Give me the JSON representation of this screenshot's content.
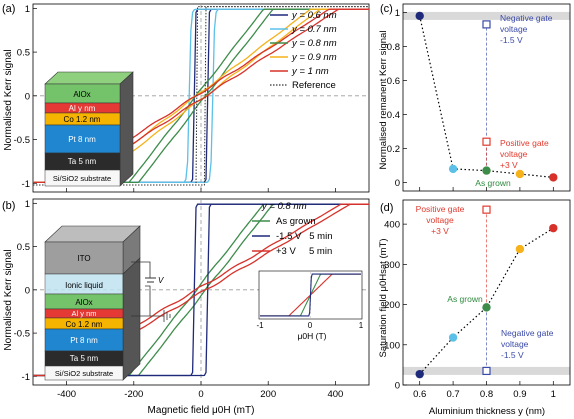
{
  "colors": {
    "navy": "#1f2a7a",
    "light_blue": "#5cc0e8",
    "green": "#3d8c4a",
    "orange": "#f5b21a",
    "red": "#d8312a",
    "reference": "#333333",
    "grey_band": "#d9d9d9",
    "annot_red": "#e23a2e",
    "annot_blue": "#3a4aa8",
    "annot_green": "#2e8a3e"
  },
  "panel_a": {
    "label": "(a)",
    "ylabel": "Normalised Kerr signal",
    "legend": [
      {
        "text": "y = 0.6 nm",
        "color": "#1f2a7a"
      },
      {
        "text": "y = 0.7 nm",
        "color": "#5cc0e8"
      },
      {
        "text": "y = 0.8 nm",
        "color": "#3d8c4a"
      },
      {
        "text": "y = 0.9 nm",
        "color": "#f5b21a"
      },
      {
        "text": "y = 1 nm",
        "color": "#d8312a"
      },
      {
        "text": "Reference",
        "color": "#333333"
      }
    ],
    "stack": [
      {
        "text": "AlOx",
        "color": "#74c26a"
      },
      {
        "text": "Al y nm",
        "color": "#e53935"
      },
      {
        "text": "Co 1.2 nm",
        "color": "#f4b400"
      },
      {
        "text": "Pt 8 nm",
        "color": "#1f86cf"
      },
      {
        "text": "Ta 5 nm",
        "color": "#2b2b2b"
      },
      {
        "text": "Si/SiO2 substrate",
        "color": "#f7f7f7"
      }
    ]
  },
  "panel_b": {
    "label": "(b)",
    "ylabel": "Normalised Kerr signal",
    "xlabel": "Magnetic field μ0H (mT)",
    "legend_title": "y = 0.8 nm",
    "legend": [
      {
        "text": "As grown",
        "color": "#3d8c4a"
      },
      {
        "text": "-1.5 V   5 min",
        "color": "#1f2a7a"
      },
      {
        "text": "+3 V     5 min",
        "color": "#d8312a"
      }
    ],
    "stack": [
      {
        "text": "ITO",
        "color": "#9e9e9e"
      },
      {
        "text": "Ionic liquid",
        "color": "#bfe3f2"
      },
      {
        "text": "AlOx",
        "color": "#74c26a"
      },
      {
        "text": "Al y nm",
        "color": "#e53935"
      },
      {
        "text": "Co 1.2 nm",
        "color": "#f4b400"
      },
      {
        "text": "Pt 8 nm",
        "color": "#1f86cf"
      },
      {
        "text": "Ta 5 nm",
        "color": "#2b2b2b"
      },
      {
        "text": "Si/SiO2 substrate",
        "color": "#f7f7f7"
      }
    ],
    "voltage_label": "V",
    "inset": {
      "xlabel": "μ0H (T)",
      "xticks": [
        "-1",
        "0",
        "1"
      ]
    }
  },
  "panel_c": {
    "label": "(c)",
    "ylabel": "Normalised remanent Kerr signal",
    "annot_negative": [
      "Negative gate",
      "voltage",
      "-1.5 V"
    ],
    "annot_positive": [
      "Positive gate",
      "voltage",
      "+3 V"
    ],
    "annot_asgrown": "As grown"
  },
  "panel_d": {
    "label": "(d)",
    "ylabel": "Saturation field μ0Hsat (mT)",
    "xlabel": "Aluminium thickness y (nm)",
    "annot_positive": [
      "Positive gate",
      "voltage",
      "+3 V"
    ],
    "annot_negative": [
      "Negative gate",
      "voltage",
      "-1.5 V"
    ],
    "annot_asgrown": "As grown"
  },
  "chart_data": [
    {
      "type": "line",
      "panel": "a",
      "xlabel": "",
      "ylabel": "Normalised Kerr signal",
      "xlim": [
        -500,
        500
      ],
      "ylim": [
        -1.1,
        1.05
      ],
      "xticks": [
        -400,
        -200,
        0,
        200,
        400
      ],
      "yticks": [
        -1,
        -0.5,
        0,
        0.5,
        1
      ],
      "series": [
        {
          "name": "y = 0.6 nm",
          "kind": "square",
          "hc": 20,
          "color": "#1f2a7a"
        },
        {
          "name": "y = 0.7 nm",
          "kind": "square_soft",
          "hc": 35,
          "color": "#5cc0e8"
        },
        {
          "name": "y = 0.8 nm",
          "kind": "sat",
          "hsat": 200,
          "color": "#3d8c4a"
        },
        {
          "name": "y = 0.9 nm",
          "kind": "sat",
          "hsat": 340,
          "color": "#f5b21a"
        },
        {
          "name": "y = 1 nm",
          "kind": "sat",
          "hsat": 395,
          "color": "#d8312a"
        },
        {
          "name": "Reference",
          "kind": "reference",
          "hc": 12,
          "color": "#333333"
        }
      ]
    },
    {
      "type": "line",
      "panel": "b",
      "xlabel": "Magnetic field μ0H (mT)",
      "ylabel": "Normalised Kerr signal",
      "xlim": [
        -500,
        500
      ],
      "ylim": [
        -1.1,
        1.05
      ],
      "xticks": [
        -400,
        -200,
        0,
        200,
        400
      ],
      "yticks": [
        -1,
        -0.5,
        0,
        0.5,
        1
      ],
      "series": [
        {
          "name": "As grown",
          "kind": "sat",
          "hsat": 200,
          "color": "#3d8c4a"
        },
        {
          "name": "-1.5 V 5 min",
          "kind": "square",
          "hc": 20,
          "color": "#1f2a7a"
        },
        {
          "name": "+3 V 5 min",
          "kind": "sat",
          "hsat": 430,
          "color": "#d8312a"
        }
      ]
    },
    {
      "type": "scatter",
      "panel": "c",
      "xlabel": "",
      "ylabel": "Normalised remanent Kerr signal",
      "xlim": [
        0.55,
        1.05
      ],
      "ylim": [
        -0.05,
        1.05
      ],
      "xticks": [
        0.6,
        0.7,
        0.8,
        0.9,
        1
      ],
      "yticks": [
        0,
        0.2,
        0.4,
        0.6,
        0.8,
        1
      ],
      "points": [
        {
          "x": 0.6,
          "y": 0.98,
          "color": "#1f2a7a"
        },
        {
          "x": 0.7,
          "y": 0.08,
          "color": "#5cc0e8"
        },
        {
          "x": 0.8,
          "y": 0.07,
          "color": "#3d8c4a"
        },
        {
          "x": 0.9,
          "y": 0.05,
          "color": "#f5b21a"
        },
        {
          "x": 1.0,
          "y": 0.03,
          "color": "#d8312a"
        }
      ],
      "gated_points": [
        {
          "label": "-1.5 V",
          "x": 0.8,
          "y": 0.93,
          "color": "#3a4aa8"
        },
        {
          "label": "+3 V",
          "x": 0.8,
          "y": 0.24,
          "color": "#e23a2e"
        }
      ],
      "reference_band": 0.98
    },
    {
      "type": "scatter",
      "panel": "d",
      "xlabel": "Aluminium thickness y (nm)",
      "ylabel": "Saturation field μ0Hsat (mT)",
      "xlim": [
        0.55,
        1.05
      ],
      "ylim": [
        0,
        460
      ],
      "xticks": [
        0.6,
        0.7,
        0.8,
        0.9,
        1
      ],
      "yticks": [
        0,
        100,
        200,
        300,
        400
      ],
      "points": [
        {
          "x": 0.6,
          "y": 27,
          "color": "#1f2a7a"
        },
        {
          "x": 0.7,
          "y": 118,
          "color": "#5cc0e8"
        },
        {
          "x": 0.8,
          "y": 193,
          "color": "#3d8c4a"
        },
        {
          "x": 0.9,
          "y": 338,
          "color": "#f5b21a"
        },
        {
          "x": 1.0,
          "y": 390,
          "color": "#d8312a"
        }
      ],
      "gated_points": [
        {
          "label": "+3 V",
          "x": 0.8,
          "y": 436,
          "color": "#e23a2e"
        },
        {
          "label": "-1.5 V",
          "x": 0.8,
          "y": 35,
          "color": "#3a4aa8"
        }
      ],
      "reference_band": 35
    }
  ]
}
